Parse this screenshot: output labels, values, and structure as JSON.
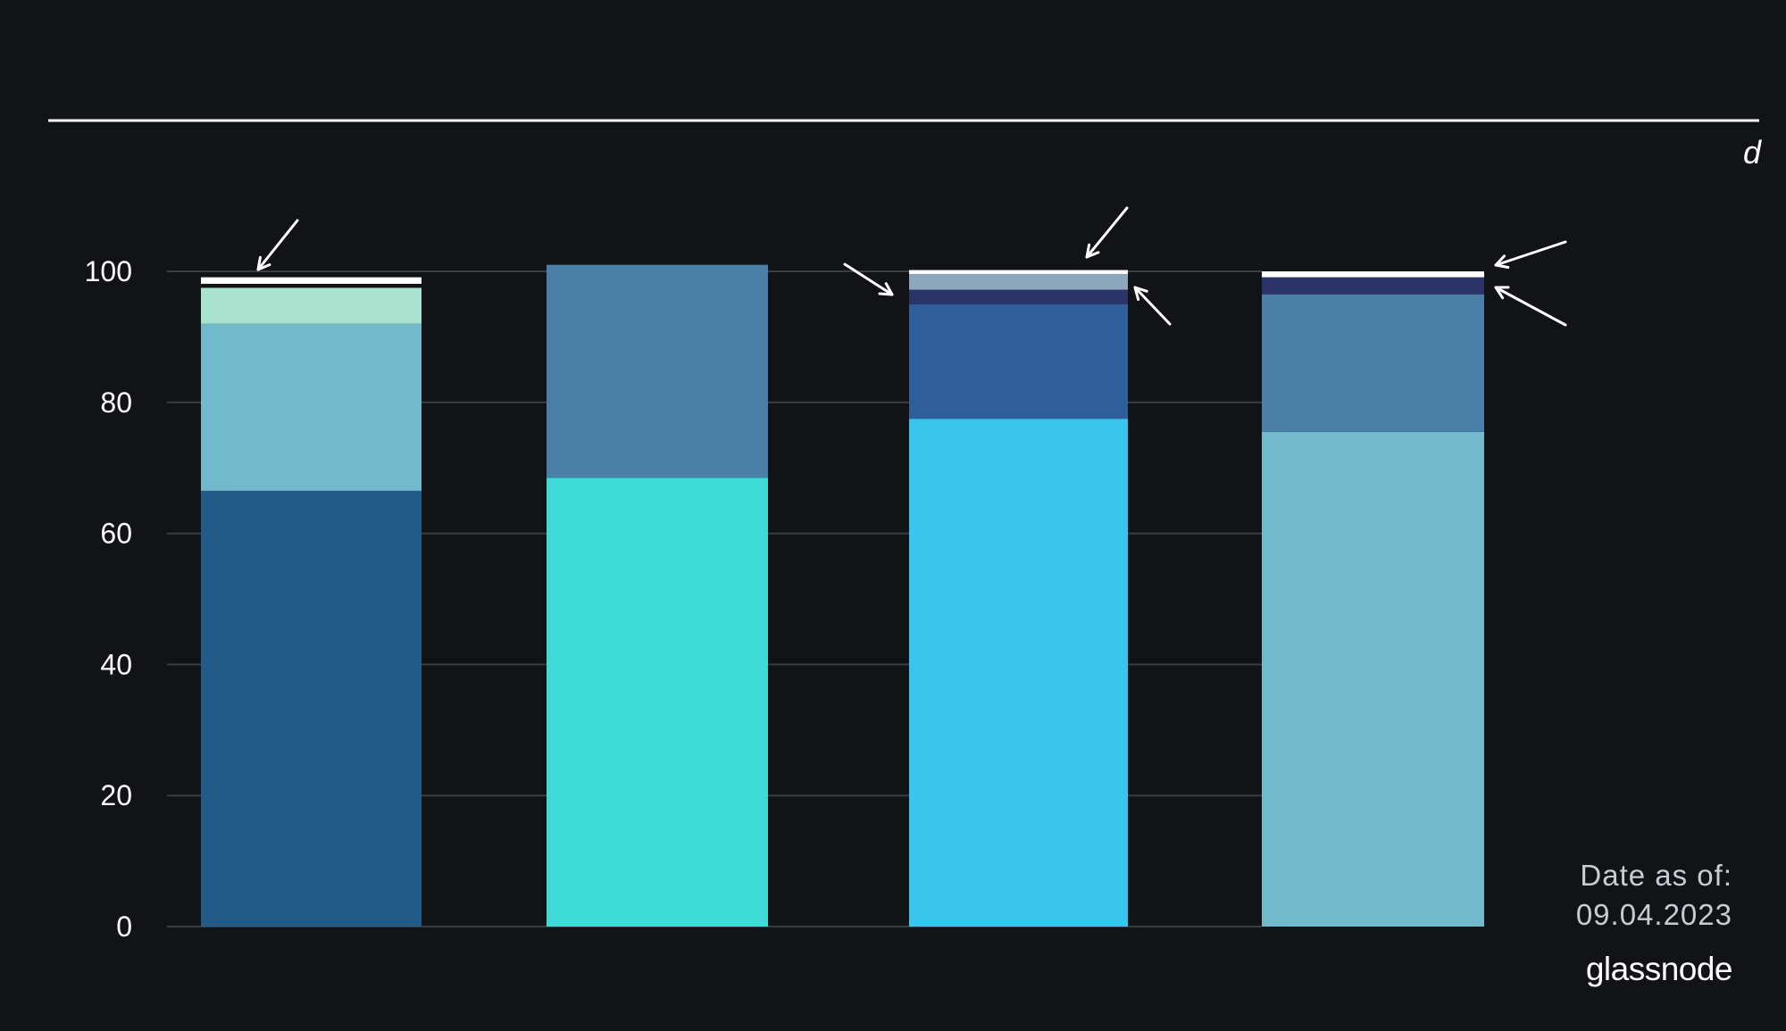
{
  "corner_label": "d",
  "date_label": "Date as of:",
  "date_value": "09.04.2023",
  "brand": "glassnode",
  "chart_data": {
    "type": "bar",
    "stacked": true,
    "title": "",
    "xlabel": "",
    "ylabel": "",
    "ylim": [
      0,
      100
    ],
    "yticks": [
      0,
      20,
      40,
      60,
      80,
      100
    ],
    "grid": true,
    "bars": [
      {
        "segments": [
          {
            "value": 66.5,
            "color": "#245a88"
          },
          {
            "value": 25.5,
            "color": "#72b9cb"
          },
          {
            "value": 5.5,
            "color": "#a9e2ce"
          },
          {
            "value": 0.6,
            "color": "#111317"
          },
          {
            "value": 1.0,
            "color": "#ffffff"
          }
        ]
      },
      {
        "segments": [
          {
            "value": 68.5,
            "color": "#3ddad7"
          },
          {
            "value": 32.5,
            "color": "#4a80a8"
          }
        ]
      },
      {
        "segments": [
          {
            "value": 77.5,
            "color": "#38c6ee"
          },
          {
            "value": 17.5,
            "color": "#2e5f9a"
          },
          {
            "value": 2.2,
            "color": "#2a3468"
          },
          {
            "value": 2.4,
            "color": "#8da7bd"
          },
          {
            "value": 0.6,
            "color": "#ffffff"
          }
        ]
      },
      {
        "segments": [
          {
            "value": 75.5,
            "color": "#72b9cb"
          },
          {
            "value": 21.0,
            "color": "#4a80a8"
          },
          {
            "value": 2.6,
            "color": "#2a3468"
          },
          {
            "value": 0.9,
            "color": "#ffffff"
          }
        ]
      }
    ],
    "arrows": [
      {
        "bar": 0,
        "pointing_to_value": 98.8,
        "from": "top-right"
      },
      {
        "bar": 2,
        "pointing_to_value": 97.0,
        "from": "top-left"
      },
      {
        "bar": 2,
        "pointing_to_value": 100.0,
        "from": "top-right"
      },
      {
        "bar": 2,
        "pointing_to_value": 98.5,
        "from": "bottom-right"
      },
      {
        "bar": 3,
        "pointing_to_value": 99.6,
        "from": "top-right"
      },
      {
        "bar": 3,
        "pointing_to_value": 97.8,
        "from": "bottom-right"
      }
    ]
  }
}
